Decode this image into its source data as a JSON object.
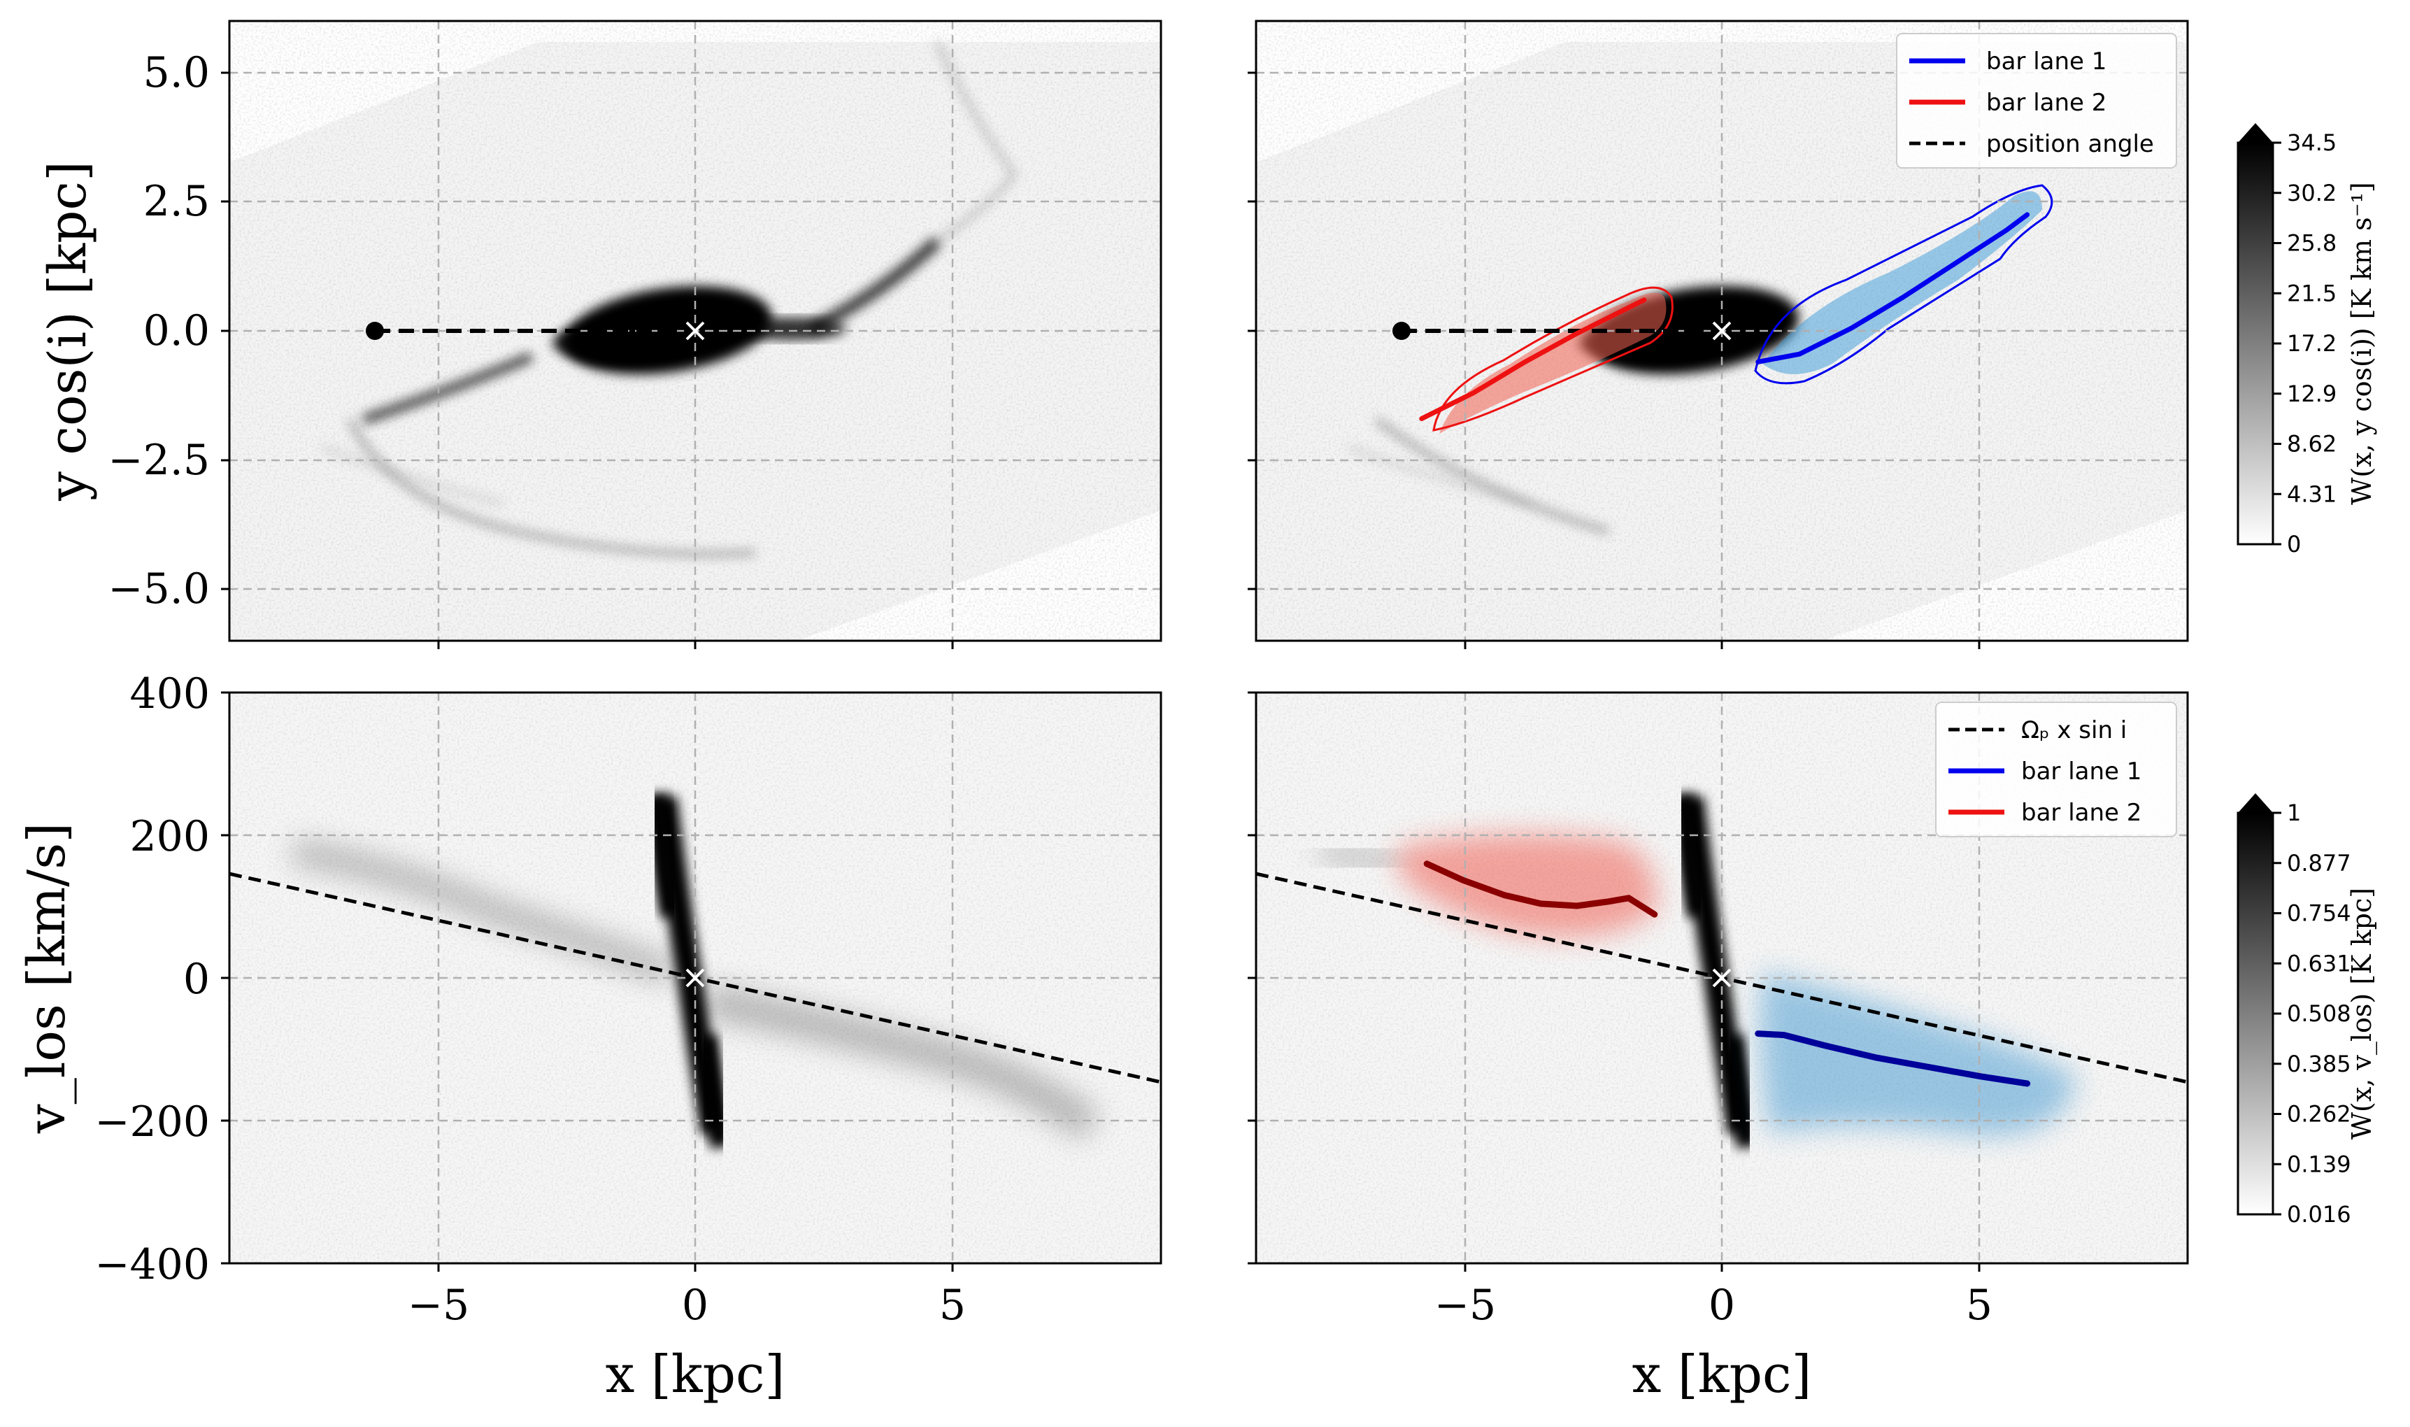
{
  "figure": {
    "top_colorbar": {
      "title": "W(x, y cos(i)) [K km s⁻¹]",
      "ticks": [
        "0",
        "4.31",
        "8.62",
        "12.9",
        "17.2",
        "21.5",
        "25.8",
        "30.2",
        "34.5"
      ]
    },
    "bottom_colorbar": {
      "title": "W(x, v_los) [K kpc]",
      "ticks": [
        "0.016",
        "0.139",
        "0.262",
        "0.385",
        "0.508",
        "0.631",
        "0.754",
        "0.877",
        "1"
      ]
    },
    "legend_top": [
      "bar lane 1",
      "bar lane 2",
      "position angle"
    ],
    "legend_bottom": [
      "Ωₚ x sin i",
      "bar lane 1",
      "bar lane 2"
    ],
    "colors": {
      "bar_lane_1": "#0000ee",
      "bar_lane_2": "#ee1111",
      "dashed": "#000000",
      "blue_fill": "#2a8ccc",
      "red_fill": "#f04030"
    }
  },
  "chart_data": [
    {
      "panel": "top-left",
      "type": "heatmap",
      "xlabel": "",
      "ylabel": "y cos(i) [kpc]",
      "xlim": [
        -9,
        9
      ],
      "ylim": [
        -6,
        6
      ],
      "yticks": [
        5.0,
        2.5,
        0.0,
        -2.5,
        -5.0
      ],
      "ytick_labels": [
        "5.0",
        "2.5",
        "0.0",
        "−2.5",
        "−5.0"
      ],
      "xticks": [
        -5,
        0,
        5
      ],
      "position_angle": {
        "x": [
          -6.2,
          0
        ],
        "y": [
          0,
          0
        ]
      },
      "center": [
        0,
        0
      ]
    },
    {
      "panel": "top-right",
      "type": "heatmap",
      "xlim": [
        -9,
        9
      ],
      "ylim": [
        -6,
        6
      ],
      "xticks": [
        -5,
        0,
        5
      ],
      "yticks": [
        5.0,
        2.5,
        0.0,
        -2.5,
        -5.0
      ],
      "position_angle": {
        "x": [
          -6.2,
          0
        ],
        "y": [
          0,
          0
        ]
      },
      "bar_lane_1": {
        "x": [
          0.7,
          1.5,
          2.5,
          3.5,
          4.5,
          5.5,
          5.9
        ],
        "y": [
          -0.6,
          -0.45,
          0.05,
          0.65,
          1.3,
          1.95,
          2.25
        ]
      },
      "bar_lane_2": {
        "x": [
          -5.8,
          -4.8,
          -3.8,
          -2.8,
          -1.8,
          -1.5
        ],
        "y": [
          -1.7,
          -1.2,
          -0.6,
          -0.05,
          0.45,
          0.6
        ]
      },
      "center": [
        0,
        0
      ]
    },
    {
      "panel": "bottom-left",
      "type": "heatmap",
      "xlabel": "x [kpc]",
      "ylabel": "v_los [km/s]",
      "xlim": [
        -9,
        9
      ],
      "ylim": [
        -400,
        400
      ],
      "yticks": [
        400,
        200,
        0,
        -200,
        -400
      ],
      "ytick_labels": [
        "400",
        "200",
        "0",
        "−200",
        "−400"
      ],
      "xticks": [
        -5,
        0,
        5
      ],
      "xtick_labels": [
        "−5",
        "0",
        "5"
      ],
      "omega_line": {
        "x": [
          -9,
          9
        ],
        "y": [
          146,
          -146
        ]
      },
      "center": [
        0,
        0
      ]
    },
    {
      "panel": "bottom-right",
      "type": "heatmap",
      "xlabel": "x [kpc]",
      "xlim": [
        -9,
        9
      ],
      "ylim": [
        -400,
        400
      ],
      "xticks": [
        -5,
        0,
        5
      ],
      "xtick_labels": [
        "−5",
        "0",
        "5"
      ],
      "yticks": [
        400,
        200,
        0,
        -200,
        -400
      ],
      "omega_line": {
        "x": [
          -9,
          9
        ],
        "y": [
          146,
          -146
        ]
      },
      "bar_lane_1": {
        "x": [
          0.7,
          1.2,
          2.0,
          3.0,
          4.0,
          5.0,
          5.9
        ],
        "y": [
          -78,
          -80,
          -95,
          -112,
          -125,
          -138,
          -148
        ]
      },
      "bar_lane_2": {
        "x": [
          -5.7,
          -5.0,
          -4.2,
          -3.5,
          -2.8,
          -2.2,
          -1.8,
          -1.3
        ],
        "y": [
          160,
          137,
          116,
          104,
          101,
          107,
          112,
          89
        ]
      },
      "center": [
        0,
        0
      ]
    }
  ]
}
